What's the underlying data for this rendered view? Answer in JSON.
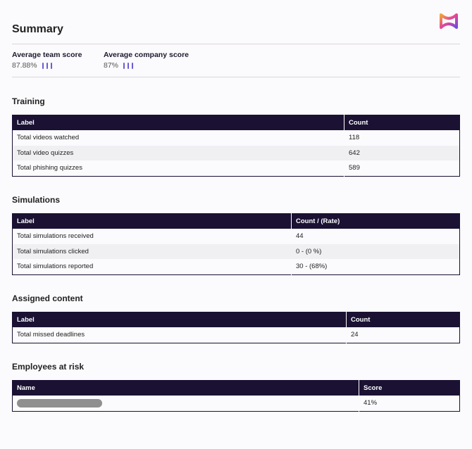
{
  "summary": {
    "title": "Summary",
    "team_score_label": "Average team score",
    "team_score_value": "87.88%",
    "company_score_label": "Average company score",
    "company_score_value": "87%"
  },
  "colors": {
    "header_bg": "#1a1133",
    "accent": "#6b5cd6"
  },
  "training": {
    "title": "Training",
    "headers": [
      "Label",
      "Count"
    ],
    "rows": [
      [
        "Total videos watched",
        "118"
      ],
      [
        "Total video quizzes",
        "642"
      ],
      [
        "Total phishing quizzes",
        "589"
      ]
    ]
  },
  "simulations": {
    "title": "Simulations",
    "headers": [
      "Label",
      "Count / (Rate)"
    ],
    "rows": [
      [
        "Total simulations received",
        "44"
      ],
      [
        "Total simulations clicked",
        "0 - (0 %)"
      ],
      [
        "Total simulations reported",
        "30 - (68%)"
      ]
    ]
  },
  "assigned": {
    "title": "Assigned content",
    "headers": [
      "Label",
      "Count"
    ],
    "rows": [
      [
        "Total missed deadlines",
        "24"
      ]
    ]
  },
  "risk": {
    "title": "Employees at risk",
    "headers": [
      "Name",
      "Score"
    ],
    "rows": [
      [
        "",
        "41%"
      ]
    ]
  }
}
